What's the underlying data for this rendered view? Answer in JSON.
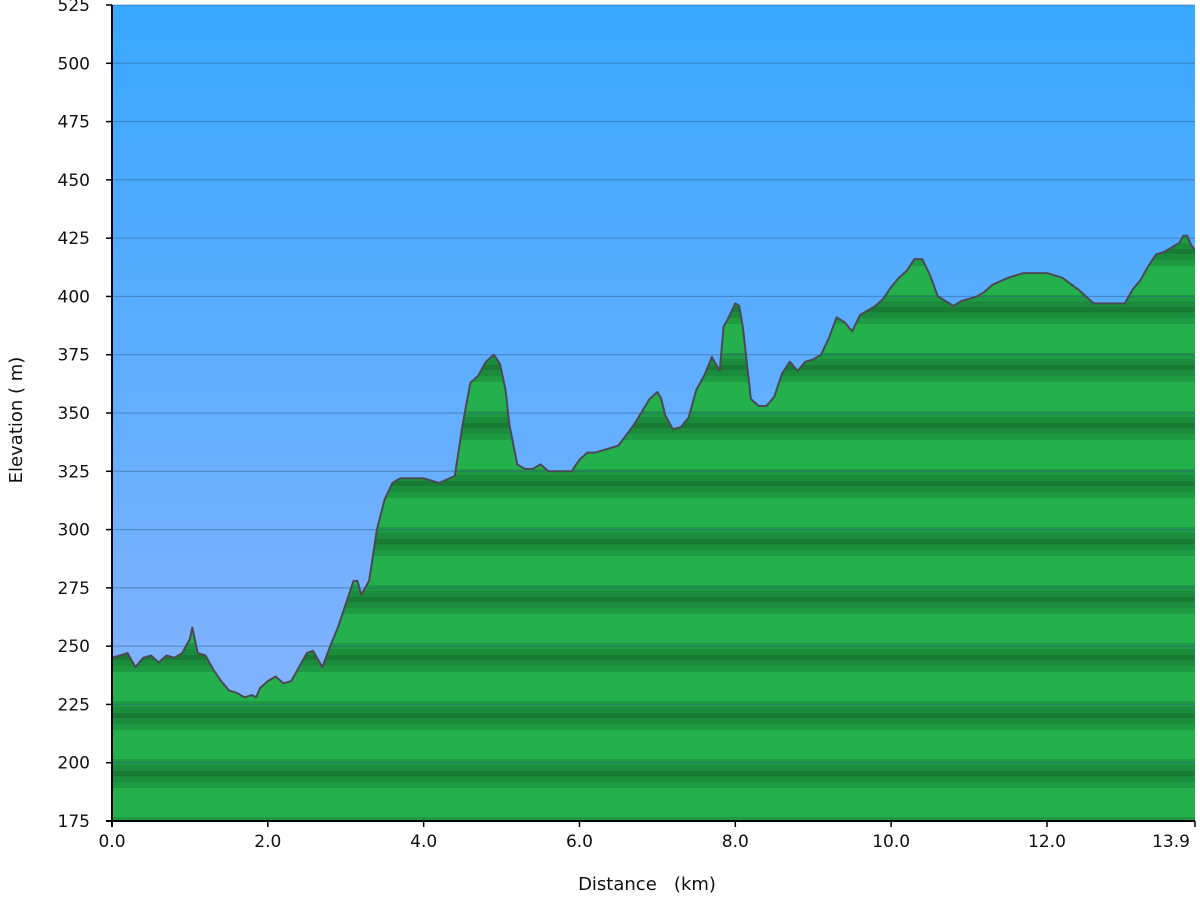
{
  "chart_data": {
    "type": "area",
    "xlabel": "Distance   (km)",
    "ylabel": "Elevation ( m)",
    "xlim": [
      0,
      13.9
    ],
    "ylim": [
      175,
      525
    ],
    "x_ticks": [
      0,
      2,
      4,
      6,
      8,
      10,
      12,
      13.9
    ],
    "x_tick_labels": [
      "0.0",
      "2.0",
      "4.0",
      "6.0",
      "8.0",
      "10.0",
      "12.0",
      "13.9"
    ],
    "y_ticks": [
      175,
      200,
      225,
      250,
      275,
      300,
      325,
      350,
      375,
      400,
      425,
      450,
      475,
      500,
      525
    ],
    "y_tick_labels": [
      "175",
      "200",
      "225",
      "250",
      "275",
      "300",
      "325",
      "350",
      "375",
      "400",
      "425",
      "450",
      "475",
      "500",
      "525"
    ],
    "grid": true,
    "colors": {
      "sky_top": "#38a8ff",
      "sky_bottom": "#8fb4ff",
      "fill_light": "#25b04e",
      "fill_dark": "#187a33",
      "outline": "#4a4a55",
      "gridline": "#2e5f8a"
    },
    "series": [
      {
        "x": [
          0,
          0.1,
          0.2,
          0.3,
          0.4,
          0.5,
          0.6,
          0.7,
          0.8,
          0.9,
          1.0,
          1.03,
          1.1,
          1.2,
          1.3,
          1.4,
          1.5,
          1.6,
          1.7,
          1.8,
          1.85,
          1.9,
          2.0,
          2.1,
          2.2,
          2.3,
          2.4,
          2.5,
          2.58,
          2.7,
          2.8,
          2.9,
          3.0,
          3.1,
          3.15,
          3.2,
          3.3,
          3.4,
          3.5,
          3.6,
          3.7,
          3.8,
          3.9,
          4.0,
          4.2,
          4.4,
          4.5,
          4.6,
          4.7,
          4.8,
          4.9,
          4.98,
          5.05,
          5.1,
          5.2,
          5.3,
          5.4,
          5.5,
          5.6,
          5.7,
          5.8,
          5.9,
          6.0,
          6.1,
          6.2,
          6.3,
          6.5,
          6.7,
          6.9,
          7.0,
          7.05,
          7.1,
          7.2,
          7.3,
          7.4,
          7.5,
          7.6,
          7.7,
          7.8,
          7.85,
          7.9,
          8.0,
          8.05,
          8.1,
          8.2,
          8.3,
          8.4,
          8.5,
          8.6,
          8.7,
          8.8,
          8.9,
          9.0,
          9.1,
          9.2,
          9.3,
          9.4,
          9.5,
          9.6,
          9.7,
          9.8,
          9.9,
          10.0,
          10.1,
          10.2,
          10.3,
          10.4,
          10.5,
          10.6,
          10.7,
          10.8,
          10.9,
          11.0,
          11.1,
          11.2,
          11.3,
          11.5,
          11.7,
          11.9,
          12.0,
          12.2,
          12.4,
          12.6,
          12.8,
          13.0,
          13.1,
          13.2,
          13.3,
          13.4,
          13.5,
          13.6,
          13.7,
          13.75,
          13.8,
          13.85,
          13.9
        ],
        "values": [
          245,
          246,
          247,
          241,
          245,
          246,
          243,
          246,
          245,
          247,
          253,
          258,
          247,
          246,
          240,
          235,
          231,
          230,
          228,
          229,
          228,
          232,
          235,
          237,
          234,
          235,
          241,
          247,
          248,
          241,
          250,
          258,
          268,
          278,
          278,
          272,
          278,
          300,
          313,
          320,
          322,
          322,
          322,
          322,
          320,
          323,
          345,
          363,
          366,
          372,
          375,
          371,
          360,
          345,
          328,
          326,
          326,
          328,
          325,
          325,
          325,
          325,
          330,
          333,
          333,
          334,
          336,
          345,
          356,
          359,
          356,
          349,
          343,
          344,
          348,
          360,
          366,
          374,
          368,
          387,
          390,
          397,
          396,
          386,
          356,
          353,
          353,
          357,
          367,
          372,
          368,
          372,
          373,
          375,
          382,
          391,
          389,
          385,
          392,
          394,
          396,
          399,
          404,
          408,
          411,
          416,
          416,
          409,
          400,
          398,
          396,
          398,
          399,
          400,
          402,
          405,
          408,
          410,
          410,
          410,
          408,
          403,
          397,
          397,
          397,
          403,
          407,
          413,
          418,
          419,
          421,
          423,
          426,
          426,
          422,
          420
        ]
      }
    ]
  }
}
